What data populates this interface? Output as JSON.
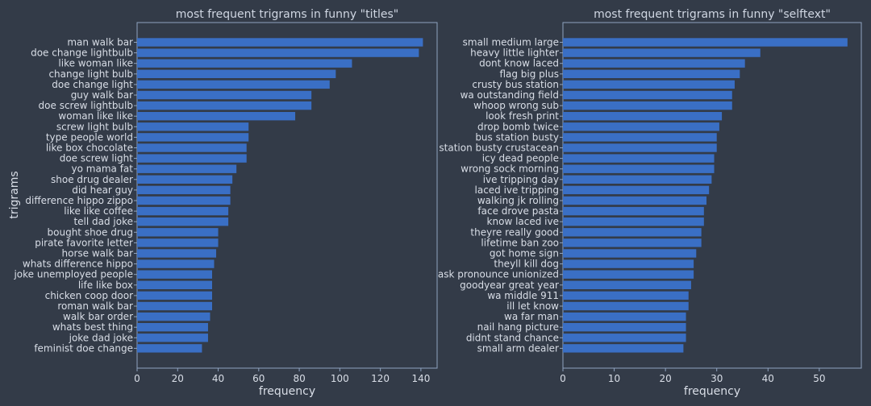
{
  "colors": {
    "background": "#333b48",
    "bar": "#3a6fc5",
    "axis": "#8fa3c0",
    "text": "#d9dee7",
    "title": "#cfd6e2"
  },
  "chart_data": [
    {
      "type": "bar",
      "orientation": "horizontal",
      "title": "most frequent trigrams in funny \"titles\"",
      "xlabel": "frequency",
      "ylabel": "trigrams",
      "xlim": [
        0,
        148
      ],
      "xticks": [
        0,
        20,
        40,
        60,
        80,
        100,
        120,
        140
      ],
      "grid": false,
      "categories": [
        "man walk bar",
        "doe change lightbulb",
        "like woman like",
        "change light bulb",
        "doe change light",
        "guy walk bar",
        "doe screw lightbulb",
        "woman like like",
        "screw light bulb",
        "type people world",
        "like box chocolate",
        "doe screw light",
        "yo mama fat",
        "shoe drug dealer",
        "did hear guy",
        "difference hippo zippo",
        "like like coffee",
        "tell dad joke",
        "bought shoe drug",
        "pirate favorite letter",
        "horse walk bar",
        "whats difference hippo",
        "joke unemployed people",
        "life like box",
        "chicken coop door",
        "roman walk bar",
        "walk bar order",
        "whats best thing",
        "joke dad joke",
        "feminist doe change"
      ],
      "values": [
        141,
        139,
        106,
        98,
        95,
        86,
        86,
        78,
        55,
        55,
        54,
        54,
        49,
        47,
        46,
        46,
        45,
        45,
        40,
        40,
        39,
        38,
        37,
        37,
        37,
        37,
        36,
        35,
        35,
        32
      ]
    },
    {
      "type": "bar",
      "orientation": "horizontal",
      "title": "most frequent trigrams in funny \"selftext\"",
      "xlabel": "frequency",
      "ylabel": "",
      "xlim": [
        0,
        58.2
      ],
      "xticks": [
        0,
        10,
        20,
        30,
        40,
        50
      ],
      "grid": false,
      "categories": [
        "small medium large",
        "heavy little lighter",
        "dont know laced",
        "flag big plus",
        "crusty bus station",
        "wa outstanding field",
        "whoop wrong sub",
        "look fresh print",
        "drop bomb twice",
        "bus station busty",
        "station busty crustacean",
        "icy dead people",
        "wrong sock morning",
        "ive tripping day",
        "laced ive tripping",
        "walking jk rolling",
        "face drove pasta",
        "know laced ive",
        "theyre really good",
        "lifetime ban zoo",
        "got home sign",
        "theyll kill dog",
        "ask pronounce unionized",
        "goodyear great year",
        "wa middle 911",
        "ill let know",
        "wa far man",
        "nail hang picture",
        "didnt stand chance",
        "small arm dealer"
      ],
      "values": [
        55.5,
        38.5,
        35.5,
        34.5,
        33.5,
        33,
        33,
        31,
        30.5,
        30,
        30,
        29.5,
        29.5,
        29,
        28.5,
        28,
        27.5,
        27.5,
        27,
        27,
        26,
        25.5,
        25.5,
        25,
        24.5,
        24.5,
        24,
        24,
        24,
        23.5
      ]
    }
  ]
}
